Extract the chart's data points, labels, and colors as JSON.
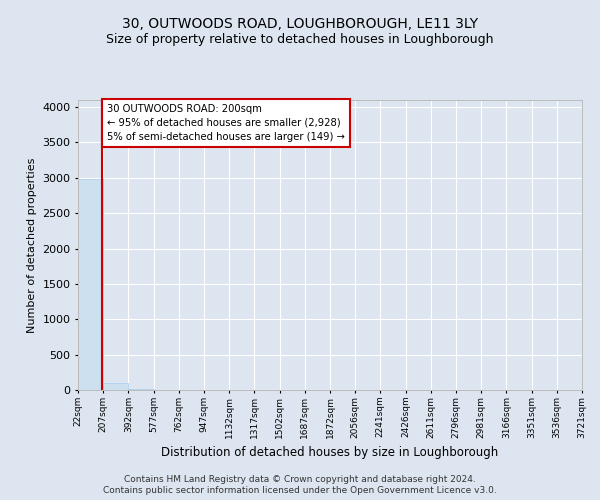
{
  "title": "30, OUTWOODS ROAD, LOUGHBOROUGH, LE11 3LY",
  "subtitle": "Size of property relative to detached houses in Loughborough",
  "xlabel": "Distribution of detached houses by size in Loughborough",
  "ylabel": "Number of detached properties",
  "footnote1": "Contains HM Land Registry data © Crown copyright and database right 2024.",
  "footnote2": "Contains public sector information licensed under the Open Government Licence v3.0.",
  "bin_edges": [
    22,
    207,
    392,
    577,
    762,
    947,
    1132,
    1317,
    1502,
    1687,
    1872,
    2056,
    2241,
    2426,
    2611,
    2796,
    2981,
    3166,
    3351,
    3536,
    3721
  ],
  "bar_heights": [
    2980,
    105,
    8,
    3,
    2,
    1,
    1,
    0,
    0,
    0,
    0,
    0,
    0,
    0,
    0,
    0,
    0,
    0,
    0,
    0
  ],
  "bar_color": "#cce0f0",
  "bar_edge_color": "#aaccee",
  "property_size": 200,
  "property_line_color": "#cc0000",
  "annotation_text": "30 OUTWOODS ROAD: 200sqm\n← 95% of detached houses are smaller (2,928)\n5% of semi-detached houses are larger (149) →",
  "annotation_box_color": "#cc0000",
  "annotation_text_color": "#000000",
  "ylim": [
    0,
    4100
  ],
  "yticks": [
    0,
    500,
    1000,
    1500,
    2000,
    2500,
    3000,
    3500,
    4000
  ],
  "background_color": "#dde6f0",
  "plot_bg_color": "#dde6f0",
  "grid_color": "#ffffff",
  "title_fontsize": 10,
  "subtitle_fontsize": 9,
  "footnote_fontsize": 6.5
}
